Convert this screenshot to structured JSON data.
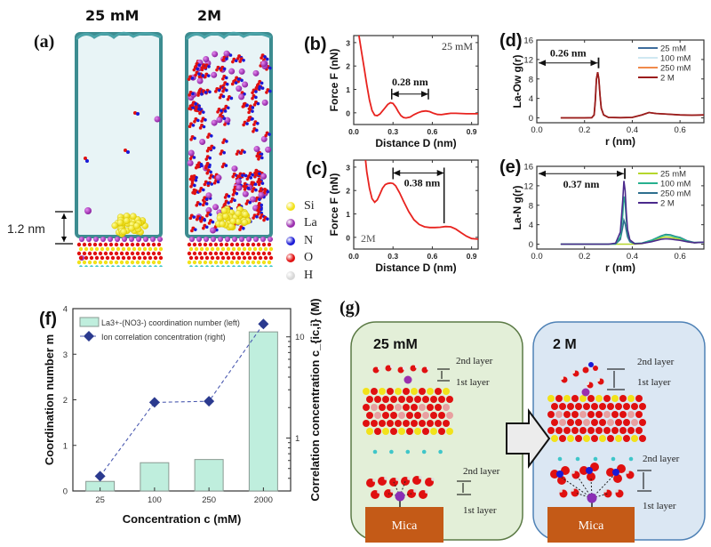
{
  "panel_a": {
    "label": "(a)",
    "titles": [
      "25 mM",
      "2M"
    ],
    "scale_label": "1.2 nm",
    "legend": [
      {
        "name": "Si",
        "color": "#f2e21a"
      },
      {
        "name": "La",
        "color": "#9b2fae"
      },
      {
        "name": "N",
        "color": "#1a1ad6"
      },
      {
        "name": "O",
        "color": "#e01010"
      },
      {
        "name": "H",
        "color": "#d8d8d8"
      }
    ]
  },
  "panel_g": {
    "label": "(g)",
    "left": {
      "title": "25 mM",
      "layer2": "2nd layer",
      "layer1": "1st layer",
      "substrate": "Mica"
    },
    "right": {
      "title": "2 M",
      "layer2": "2nd layer",
      "layer1": "1st layer",
      "substrate": "Mica"
    }
  },
  "chart_data": [
    {
      "id": "b",
      "panel_label": "(b)",
      "type": "line",
      "xlabel": "Distance D (nm)",
      "ylabel": "Force F (nN)",
      "xlim": [
        0,
        0.95
      ],
      "ylim": [
        -0.5,
        3.3
      ],
      "xticks": [
        0.0,
        0.3,
        0.6,
        0.9
      ],
      "xtick_labels": [
        "0.0",
        "0.3",
        "0.6",
        "0.9"
      ],
      "yticks": [
        0,
        1,
        2,
        3
      ],
      "ytick_labels": [
        "0",
        "1",
        "2",
        "3"
      ],
      "annotation": "25 mM",
      "annotation_position": "top-right",
      "measure": {
        "label": "0.28 nm",
        "from": 0.29,
        "to": 0.57,
        "y": 0.8
      },
      "series": [
        {
          "name": "25 mM",
          "color": "#e8231f",
          "x": [
            0.04,
            0.06,
            0.08,
            0.1,
            0.12,
            0.14,
            0.16,
            0.18,
            0.2,
            0.22,
            0.24,
            0.26,
            0.28,
            0.3,
            0.32,
            0.34,
            0.36,
            0.38,
            0.4,
            0.43,
            0.46,
            0.49,
            0.52,
            0.55,
            0.58,
            0.61,
            0.64,
            0.67,
            0.7,
            0.74,
            0.78,
            0.82,
            0.86,
            0.9,
            0.95
          ],
          "y": [
            3.3,
            2.6,
            1.9,
            1.2,
            0.55,
            0.1,
            -0.1,
            -0.12,
            -0.05,
            0.08,
            0.22,
            0.36,
            0.43,
            0.4,
            0.25,
            0.05,
            -0.12,
            -0.2,
            -0.22,
            -0.18,
            -0.08,
            0.0,
            0.06,
            0.08,
            0.05,
            -0.02,
            -0.07,
            -0.08,
            -0.05,
            -0.02,
            -0.02,
            -0.03,
            -0.04,
            -0.04,
            -0.04
          ]
        }
      ]
    },
    {
      "id": "c",
      "panel_label": "(c)",
      "type": "line",
      "xlabel": "Distance D (nm)",
      "ylabel": "Force F (nN)",
      "xlim": [
        0,
        0.95
      ],
      "ylim": [
        -0.5,
        3.3
      ],
      "xticks": [
        0.0,
        0.3,
        0.6,
        0.9
      ],
      "xtick_labels": [
        "0.0",
        "0.3",
        "0.6",
        "0.9"
      ],
      "yticks": [
        0,
        1,
        2,
        3
      ],
      "ytick_labels": [
        "0",
        "1",
        "2",
        "3"
      ],
      "annotation": "2M",
      "annotation_position": "bottom-left",
      "measure": {
        "label": "0.38 nm",
        "from": 0.3,
        "to": 0.69,
        "y": 2.75
      },
      "series": [
        {
          "name": "2M",
          "color": "#e8231f",
          "x": [
            0.09,
            0.1,
            0.12,
            0.14,
            0.16,
            0.18,
            0.2,
            0.22,
            0.24,
            0.26,
            0.28,
            0.3,
            0.32,
            0.35,
            0.38,
            0.42,
            0.46,
            0.5,
            0.54,
            0.58,
            0.62,
            0.66,
            0.7,
            0.74,
            0.78,
            0.82,
            0.86,
            0.9,
            0.95
          ],
          "y": [
            3.3,
            2.8,
            2.1,
            1.65,
            1.5,
            1.6,
            1.85,
            2.1,
            2.25,
            2.3,
            2.32,
            2.3,
            2.2,
            1.9,
            1.55,
            1.1,
            0.75,
            0.55,
            0.45,
            0.42,
            0.42,
            0.43,
            0.46,
            0.45,
            0.35,
            0.2,
            0.05,
            -0.05,
            -0.08
          ]
        }
      ]
    },
    {
      "id": "d",
      "panel_label": "(d)",
      "type": "line",
      "xlabel": "r (nm)",
      "ylabel": "La-Ow  g(r)",
      "xlim": [
        0,
        0.7
      ],
      "ylim": [
        -1,
        16
      ],
      "xticks": [
        0.0,
        0.2,
        0.4,
        0.6
      ],
      "xtick_labels": [
        "0.0",
        "0.2",
        "0.4",
        "0.6"
      ],
      "yticks": [
        0,
        4,
        8,
        12,
        16
      ],
      "ytick_labels": [
        "0",
        "4",
        "8",
        "12",
        "16"
      ],
      "measure": {
        "label": "0.26 nm",
        "from": 0.0,
        "to": 0.255,
        "y": 11.3
      },
      "legend_position": "top-right",
      "series": [
        {
          "name": "25 mM",
          "color": "#3e6d9c",
          "peak": 9.4
        },
        {
          "name": "100 mM",
          "color": "#cfe8f2",
          "peak": 9.4
        },
        {
          "name": "250 mM",
          "color": "#f08a4b",
          "peak": 9.4
        },
        {
          "name": "2 M",
          "color": "#9b1c1c",
          "peak": 9.4
        }
      ],
      "curve": {
        "x": [
          0.1,
          0.2,
          0.23,
          0.24,
          0.245,
          0.25,
          0.255,
          0.26,
          0.265,
          0.27,
          0.28,
          0.3,
          0.35,
          0.4,
          0.44,
          0.47,
          0.5,
          0.55,
          0.6,
          0.65,
          0.7
        ],
        "y": [
          0,
          0,
          0.05,
          0.6,
          3.5,
          8.0,
          9.4,
          8.0,
          4.5,
          2.0,
          0.6,
          0.1,
          0.05,
          0.1,
          0.6,
          1.1,
          0.9,
          0.75,
          0.6,
          0.55,
          0.6
        ]
      }
    },
    {
      "id": "e",
      "panel_label": "(e)",
      "type": "line",
      "xlabel": "r (nm)",
      "ylabel": "La-N  g(r)",
      "xlim": [
        0,
        0.7
      ],
      "ylim": [
        -1,
        16
      ],
      "xticks": [
        0.0,
        0.2,
        0.4,
        0.6
      ],
      "xtick_labels": [
        "0.0",
        "0.2",
        "0.4",
        "0.6"
      ],
      "yticks": [
        0,
        4,
        8,
        12,
        16
      ],
      "ytick_labels": [
        "0",
        "4",
        "8",
        "12",
        "16"
      ],
      "measure": {
        "label": "0.37 nm",
        "from": 0.0,
        "to": 0.365,
        "y": 14.5
      },
      "legend_position": "top-right",
      "x": [
        0.1,
        0.3,
        0.33,
        0.35,
        0.36,
        0.365,
        0.37,
        0.375,
        0.38,
        0.39,
        0.41,
        0.44,
        0.48,
        0.52,
        0.54,
        0.56,
        0.58,
        0.6,
        0.63,
        0.66,
        0.7
      ],
      "series": [
        {
          "name": "25 mM",
          "color": "#b5d62c",
          "y": [
            0,
            0,
            0,
            0,
            0,
            0,
            0,
            0,
            0,
            0,
            0,
            0.1,
            0.6,
            1.3,
            1.5,
            1.4,
            1.2,
            1.0,
            0.5,
            0.3,
            0.4
          ]
        },
        {
          "name": "100 mM",
          "color": "#27b08f",
          "y": [
            0,
            0,
            0.1,
            1.5,
            6.0,
            9.8,
            8.5,
            5.0,
            2.5,
            0.8,
            0.15,
            0.2,
            0.8,
            1.6,
            1.9,
            1.8,
            1.5,
            1.3,
            0.6,
            0.3,
            0.4
          ]
        },
        {
          "name": "250 mM",
          "color": "#2e6f8e",
          "y": [
            0,
            0,
            0.05,
            1.0,
            3.5,
            4.9,
            4.2,
            2.8,
            1.5,
            0.5,
            0.1,
            0.2,
            0.8,
            1.7,
            2.0,
            1.9,
            1.6,
            1.4,
            0.7,
            0.35,
            0.4
          ]
        },
        {
          "name": "2 M",
          "color": "#4b2a8c",
          "y": [
            0,
            0,
            0.2,
            2.5,
            9.0,
            13.0,
            11.0,
            6.5,
            3.0,
            0.9,
            0.1,
            0.15,
            0.5,
            1.0,
            1.1,
            1.05,
            0.9,
            0.8,
            0.5,
            0.3,
            0.4
          ]
        }
      ]
    },
    {
      "id": "f",
      "panel_label": "(f)",
      "type": "bar",
      "xlabel": "Concentration c (mM)",
      "ylabel": "Coordination number m",
      "y2label": "Correlation concentration c_{ic,i} (M)",
      "categories": [
        "25",
        "100",
        "250",
        "2000"
      ],
      "ylim": [
        0,
        4
      ],
      "yticks": [
        0,
        1,
        2,
        3,
        4
      ],
      "ytick_labels": [
        "0",
        "1",
        "2",
        "3",
        "4"
      ],
      "y2lim": [
        0.3,
        19
      ],
      "y2scale": "log",
      "y2ticks": [
        1,
        10
      ],
      "y2tick_labels": [
        "1",
        "10"
      ],
      "legend_position": "top-left",
      "series": [
        {
          "name": "La3+-(NO3-) coordination number (left)",
          "type": "bar",
          "axis": "left",
          "color": "#bfeedd",
          "edge": "#8a9a92",
          "values": [
            0.21,
            0.62,
            0.69,
            3.49
          ]
        },
        {
          "name": "Ion correlation concentration (right)",
          "type": "line",
          "axis": "right",
          "style": "dashed",
          "marker": "diamond",
          "color": "#2b3a8f",
          "values": [
            0.42,
            2.25,
            2.31,
            13.4
          ]
        }
      ],
      "legend": [
        "La3+-(NO3-) coordination number (left)",
        "Ion correlation concentration (right)"
      ]
    }
  ]
}
